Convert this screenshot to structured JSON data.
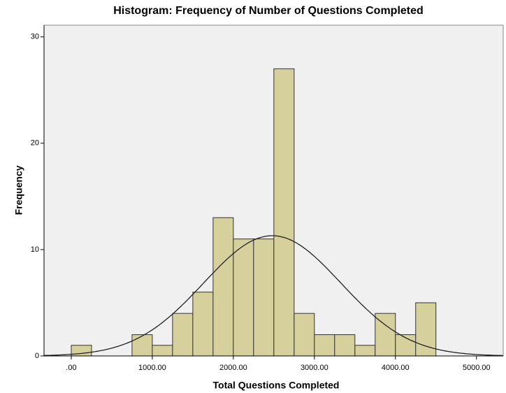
{
  "chart_data": {
    "type": "histogram",
    "title": "Histogram: Frequency of Number of Questions Completed",
    "x_label": "Total Questions Completed",
    "y_label": "Frequency",
    "bins": [
      0,
      250,
      500,
      750,
      1000,
      1250,
      1500,
      1750,
      2000,
      2250,
      2500,
      2750,
      3000,
      3250,
      3500,
      3750,
      4000,
      4250,
      4500
    ],
    "counts": [
      1,
      0,
      0,
      2,
      1,
      4,
      6,
      13,
      11,
      11,
      27,
      4,
      2,
      2,
      1,
      4,
      2,
      5
    ],
    "color": "#d6d09c",
    "normal_curve": {
      "mean": 2480,
      "std": 847
    },
    "xlim": [
      -336,
      5330
    ],
    "xticks": [
      {
        "value": 0,
        "label": ".00"
      },
      {
        "value": 1000,
        "label": "1000.00"
      },
      {
        "value": 2000,
        "label": "2000.00"
      },
      {
        "value": 3000,
        "label": "3000.00"
      },
      {
        "value": 4000,
        "label": "4000.00"
      },
      {
        "value": 5000,
        "label": "5000.00"
      }
    ],
    "ylim": [
      0,
      31.1
    ],
    "yticks": [
      0,
      10,
      20,
      30
    ]
  }
}
